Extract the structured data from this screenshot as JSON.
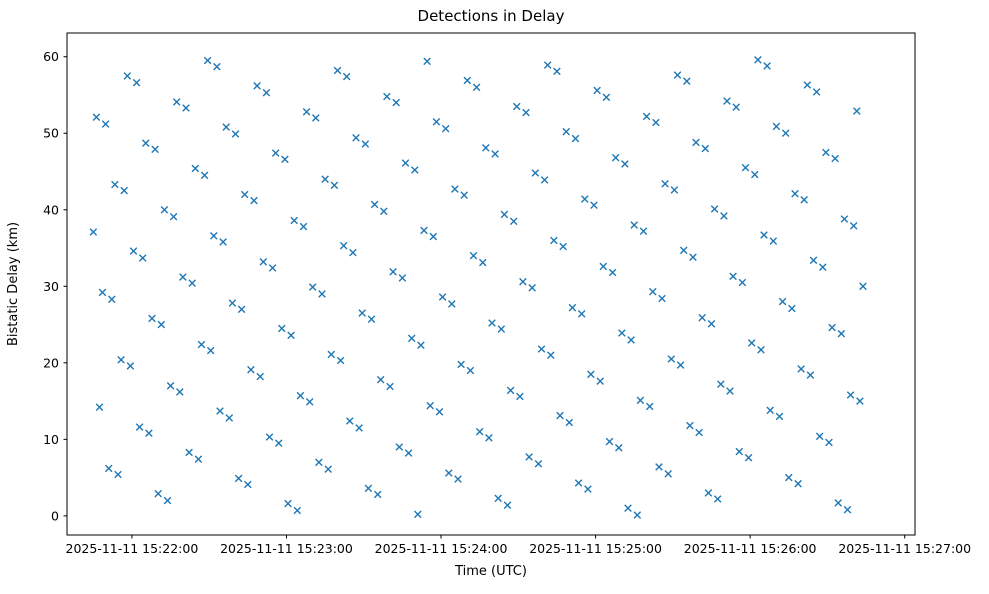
{
  "chart_data": {
    "type": "scatter",
    "title": "Detections in Delay",
    "xlabel": "Time (UTC)",
    "ylabel": "Bistatic Delay (km)",
    "marker": "x",
    "marker_color": "#1f77b4",
    "grid": false,
    "legend": "none",
    "x_tick_labels": [
      "2025-11-11 15:22:00",
      "2025-11-11 15:23:00",
      "2025-11-11 15:24:00",
      "2025-11-11 15:25:00",
      "2025-11-11 15:26:00",
      "2025-11-11 15:27:00"
    ],
    "x_tick_seconds": [
      0,
      60,
      120,
      180,
      240,
      300
    ],
    "x_unit": "seconds after 2025-11-11 15:22:00 UTC",
    "xlim_seconds": [
      -25.2,
      304
    ],
    "y_ticks": [
      0,
      10,
      20,
      30,
      40,
      50,
      60
    ],
    "ylim": [
      -2.5,
      63.1
    ],
    "points": [
      [
        -15.0,
        37.1
      ],
      [
        -13.8,
        52.1
      ],
      [
        -12.6,
        14.2
      ],
      [
        -11.4,
        29.2
      ],
      [
        -10.2,
        51.2
      ],
      [
        -9.0,
        6.2
      ],
      [
        -7.8,
        28.3
      ],
      [
        -6.6,
        43.3
      ],
      [
        -5.4,
        5.4
      ],
      [
        -4.2,
        20.4
      ],
      [
        -3.0,
        42.5
      ],
      [
        -1.8,
        57.5
      ],
      [
        -0.6,
        19.6
      ],
      [
        0.6,
        34.6
      ],
      [
        1.8,
        56.6
      ],
      [
        3.0,
        11.6
      ],
      [
        4.2,
        33.7
      ],
      [
        5.4,
        48.7
      ],
      [
        6.6,
        10.8
      ],
      [
        7.8,
        25.8
      ],
      [
        9.0,
        47.9
      ],
      [
        10.2,
        2.9
      ],
      [
        11.4,
        25.0
      ],
      [
        12.6,
        40.0
      ],
      [
        13.8,
        2.0
      ],
      [
        15.0,
        17.0
      ],
      [
        16.2,
        39.1
      ],
      [
        17.4,
        54.1
      ],
      [
        18.6,
        16.2
      ],
      [
        19.8,
        31.2
      ],
      [
        21.0,
        53.3
      ],
      [
        22.2,
        8.3
      ],
      [
        23.4,
        30.4
      ],
      [
        24.6,
        45.4
      ],
      [
        25.8,
        7.4
      ],
      [
        27.0,
        22.4
      ],
      [
        28.2,
        44.5
      ],
      [
        29.4,
        59.5
      ],
      [
        30.6,
        21.6
      ],
      [
        31.8,
        36.6
      ],
      [
        33.0,
        58.7
      ],
      [
        34.2,
        13.7
      ],
      [
        35.4,
        35.8
      ],
      [
        36.6,
        50.8
      ],
      [
        37.8,
        12.8
      ],
      [
        39.0,
        27.8
      ],
      [
        40.2,
        49.9
      ],
      [
        41.4,
        4.9
      ],
      [
        42.6,
        27.0
      ],
      [
        43.8,
        42.0
      ],
      [
        45.0,
        4.1
      ],
      [
        46.2,
        19.1
      ],
      [
        47.4,
        41.2
      ],
      [
        48.6,
        56.2
      ],
      [
        49.8,
        18.2
      ],
      [
        51.0,
        33.2
      ],
      [
        52.2,
        55.3
      ],
      [
        53.4,
        10.3
      ],
      [
        54.6,
        32.4
      ],
      [
        55.8,
        47.4
      ],
      [
        57.0,
        9.5
      ],
      [
        58.2,
        24.5
      ],
      [
        59.4,
        46.6
      ],
      [
        60.6,
        1.6
      ],
      [
        61.8,
        23.6
      ],
      [
        63.0,
        38.6
      ],
      [
        64.2,
        0.7
      ],
      [
        65.4,
        15.7
      ],
      [
        66.6,
        37.8
      ],
      [
        67.8,
        52.8
      ],
      [
        69.0,
        14.9
      ],
      [
        70.2,
        29.9
      ],
      [
        71.4,
        52.0
      ],
      [
        72.6,
        7.0
      ],
      [
        73.8,
        29.0
      ],
      [
        75.0,
        44.0
      ],
      [
        76.2,
        6.1
      ],
      [
        77.4,
        21.1
      ],
      [
        78.6,
        43.2
      ],
      [
        79.8,
        58.2
      ],
      [
        81.0,
        20.3
      ],
      [
        82.2,
        35.3
      ],
      [
        83.4,
        57.4
      ],
      [
        84.6,
        12.4
      ],
      [
        85.8,
        34.4
      ],
      [
        87.0,
        49.4
      ],
      [
        88.2,
        11.5
      ],
      [
        89.4,
        26.5
      ],
      [
        90.6,
        48.6
      ],
      [
        91.8,
        3.6
      ],
      [
        93.0,
        25.7
      ],
      [
        94.2,
        40.7
      ],
      [
        95.4,
        2.8
      ],
      [
        96.6,
        17.8
      ],
      [
        97.8,
        39.8
      ],
      [
        99.0,
        54.8
      ],
      [
        100.2,
        16.9
      ],
      [
        101.4,
        31.9
      ],
      [
        102.6,
        54.0
      ],
      [
        103.8,
        9.0
      ],
      [
        105.0,
        31.1
      ],
      [
        106.2,
        46.1
      ],
      [
        107.4,
        8.2
      ],
      [
        108.6,
        23.2
      ],
      [
        109.8,
        45.2
      ],
      [
        111.0,
        0.2
      ],
      [
        112.2,
        22.3
      ],
      [
        113.4,
        37.3
      ],
      [
        114.6,
        59.4
      ],
      [
        115.8,
        14.4
      ],
      [
        117.0,
        36.5
      ],
      [
        118.2,
        51.5
      ],
      [
        119.4,
        13.6
      ],
      [
        120.6,
        28.6
      ],
      [
        121.8,
        50.6
      ],
      [
        123.0,
        5.6
      ],
      [
        124.2,
        27.7
      ],
      [
        125.4,
        42.7
      ],
      [
        126.6,
        4.8
      ],
      [
        127.8,
        19.8
      ],
      [
        129.0,
        41.9
      ],
      [
        130.2,
        56.9
      ],
      [
        131.4,
        19.0
      ],
      [
        132.6,
        34.0
      ],
      [
        133.8,
        56.0
      ],
      [
        135.0,
        11.0
      ],
      [
        136.2,
        33.1
      ],
      [
        137.4,
        48.1
      ],
      [
        138.6,
        10.2
      ],
      [
        139.8,
        25.2
      ],
      [
        141.0,
        47.3
      ],
      [
        142.2,
        2.3
      ],
      [
        143.4,
        24.4
      ],
      [
        144.6,
        39.4
      ],
      [
        145.8,
        1.4
      ],
      [
        147.0,
        16.4
      ],
      [
        148.2,
        38.5
      ],
      [
        149.4,
        53.5
      ],
      [
        150.6,
        15.6
      ],
      [
        151.8,
        30.6
      ],
      [
        153.0,
        52.7
      ],
      [
        154.2,
        7.7
      ],
      [
        155.4,
        29.8
      ],
      [
        156.6,
        44.8
      ],
      [
        157.8,
        6.8
      ],
      [
        159.0,
        21.8
      ],
      [
        160.2,
        43.9
      ],
      [
        161.4,
        58.9
      ],
      [
        162.6,
        21.0
      ],
      [
        163.8,
        36.0
      ],
      [
        165.0,
        58.1
      ],
      [
        166.2,
        13.1
      ],
      [
        167.4,
        35.2
      ],
      [
        168.6,
        50.2
      ],
      [
        169.8,
        12.2
      ],
      [
        171.0,
        27.2
      ],
      [
        172.2,
        49.3
      ],
      [
        173.4,
        4.3
      ],
      [
        174.6,
        26.4
      ],
      [
        175.8,
        41.4
      ],
      [
        177.0,
        3.5
      ],
      [
        178.2,
        18.5
      ],
      [
        179.4,
        40.6
      ],
      [
        180.6,
        55.6
      ],
      [
        181.8,
        17.6
      ],
      [
        183.0,
        32.6
      ],
      [
        184.2,
        54.7
      ],
      [
        185.4,
        9.7
      ],
      [
        186.6,
        31.8
      ],
      [
        187.8,
        46.8
      ],
      [
        189.0,
        8.9
      ],
      [
        190.2,
        23.9
      ],
      [
        191.4,
        46.0
      ],
      [
        192.6,
        1.0
      ],
      [
        193.8,
        23.0
      ],
      [
        195.0,
        38.0
      ],
      [
        196.2,
        0.1
      ],
      [
        197.4,
        15.1
      ],
      [
        198.6,
        37.2
      ],
      [
        199.8,
        52.2
      ],
      [
        201.0,
        14.3
      ],
      [
        202.2,
        29.3
      ],
      [
        203.4,
        51.4
      ],
      [
        204.6,
        6.4
      ],
      [
        205.8,
        28.4
      ],
      [
        207.0,
        43.4
      ],
      [
        208.2,
        5.5
      ],
      [
        209.4,
        20.5
      ],
      [
        210.6,
        42.6
      ],
      [
        211.8,
        57.6
      ],
      [
        213.0,
        19.7
      ],
      [
        214.2,
        34.7
      ],
      [
        215.4,
        56.8
      ],
      [
        216.6,
        11.8
      ],
      [
        217.8,
        33.8
      ],
      [
        219.0,
        48.8
      ],
      [
        220.2,
        10.9
      ],
      [
        221.4,
        25.9
      ],
      [
        222.6,
        48.0
      ],
      [
        223.8,
        3.0
      ],
      [
        225.0,
        25.1
      ],
      [
        226.2,
        40.1
      ],
      [
        227.4,
        2.2
      ],
      [
        228.6,
        17.2
      ],
      [
        229.8,
        39.2
      ],
      [
        231.0,
        54.2
      ],
      [
        232.2,
        16.3
      ],
      [
        233.4,
        31.3
      ],
      [
        234.6,
        53.4
      ],
      [
        235.8,
        8.4
      ],
      [
        237.0,
        30.5
      ],
      [
        238.2,
        45.5
      ],
      [
        239.4,
        7.6
      ],
      [
        240.6,
        22.6
      ],
      [
        241.8,
        44.6
      ],
      [
        243.0,
        59.6
      ],
      [
        244.2,
        21.7
      ],
      [
        245.4,
        36.7
      ],
      [
        246.6,
        58.8
      ],
      [
        247.8,
        13.8
      ],
      [
        249.0,
        35.9
      ],
      [
        250.2,
        50.9
      ],
      [
        251.4,
        13.0
      ],
      [
        252.6,
        28.0
      ],
      [
        253.8,
        50.0
      ],
      [
        255.0,
        5.0
      ],
      [
        256.2,
        27.1
      ],
      [
        257.4,
        42.1
      ],
      [
        258.6,
        4.2
      ],
      [
        259.8,
        19.2
      ],
      [
        261.0,
        41.3
      ],
      [
        262.2,
        56.3
      ],
      [
        263.4,
        18.4
      ],
      [
        264.6,
        33.4
      ],
      [
        265.8,
        55.4
      ],
      [
        267.0,
        10.4
      ],
      [
        268.2,
        32.5
      ],
      [
        269.4,
        47.5
      ],
      [
        270.6,
        9.6
      ],
      [
        271.8,
        24.6
      ],
      [
        273.0,
        46.7
      ],
      [
        274.2,
        1.7
      ],
      [
        275.4,
        23.8
      ],
      [
        276.6,
        38.8
      ],
      [
        277.8,
        0.8
      ],
      [
        279.0,
        15.8
      ],
      [
        280.2,
        37.9
      ],
      [
        281.4,
        52.9
      ],
      [
        282.6,
        15.0
      ],
      [
        283.8,
        30.0
      ]
    ]
  }
}
